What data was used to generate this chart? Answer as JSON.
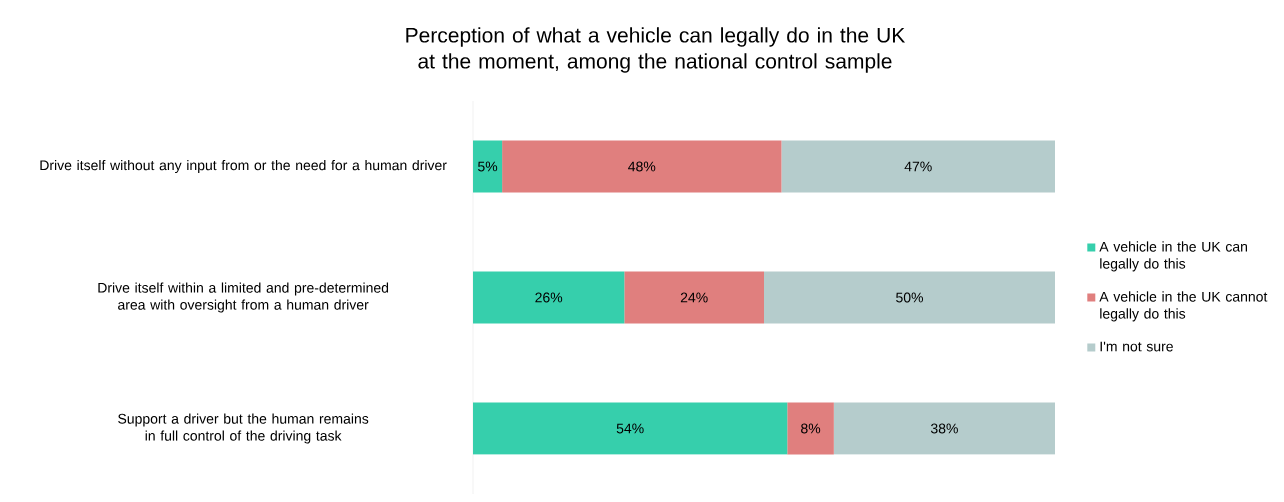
{
  "chart_data": {
    "type": "bar",
    "orientation": "horizontal",
    "stacked": true,
    "title": "Perception of what a vehicle can legally do in the UK at the moment, among the national control sample",
    "categories": [
      "Drive itself without any input from or the need for a human driver",
      "Drive itself within a limited and pre-determined area with oversight from a human driver",
      "Support a driver but the human remains in full control of the driving task"
    ],
    "series": [
      {
        "name": "A vehicle in the UK can legally do this",
        "color": "#36cfac",
        "values": [
          5,
          26,
          54
        ],
        "value_labels": [
          "5%",
          "26%",
          "54%"
        ]
      },
      {
        "name": "A vehicle in the UK cannot legally do this",
        "color": "#e07f7e",
        "values": [
          48,
          24,
          8
        ],
        "value_labels": [
          "48%",
          "24%",
          "8%"
        ]
      },
      {
        "name": "I'm not sure",
        "color": "#b5cccc",
        "values": [
          47,
          50,
          38
        ],
        "value_labels": [
          "47%",
          "50%",
          "38%"
        ]
      }
    ],
    "legend": "right",
    "tick_labels": "y"
  }
}
